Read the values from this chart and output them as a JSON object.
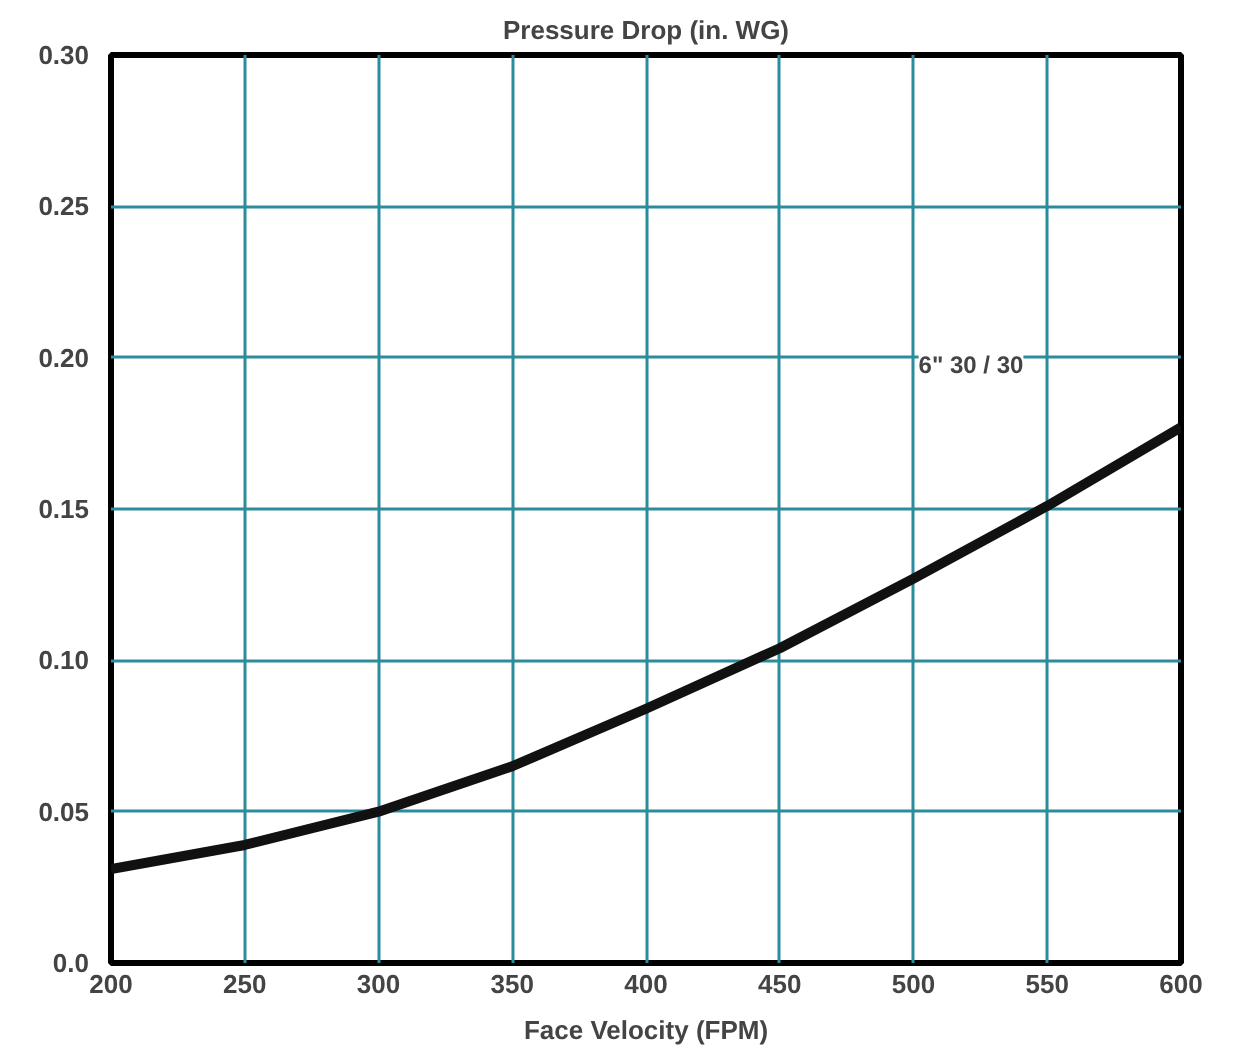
{
  "chart_data": {
    "type": "line",
    "title": "Pressure Drop (in. WG)",
    "xlabel": "Face Velocity (FPM)",
    "x": [
      200,
      250,
      300,
      350,
      400,
      450,
      500,
      550,
      600
    ],
    "series": [
      {
        "color": "#111111",
        "values": [
          0.031,
          0.039,
          0.05,
          0.065,
          0.084,
          0.104,
          0.127,
          0.151,
          0.177
        ]
      }
    ],
    "xlim": [
      200,
      600
    ],
    "xticks": [
      200,
      250,
      300,
      350,
      400,
      450,
      500,
      550,
      600
    ],
    "ylim": [
      0,
      0.3
    ],
    "yticks": [
      {
        "value": 0,
        "label": "0.0"
      },
      0.05,
      {
        "value": 0.1,
        "label": "0.10"
      },
      0.15,
      {
        "value": 0.2,
        "label": "0.20"
      },
      0.25,
      {
        "value": 0.3,
        "label": "0.30"
      }
    ],
    "grid": true,
    "marker": "none",
    "line_style": "solid",
    "annotations": [
      "6\" 30 / 30"
    ]
  }
}
